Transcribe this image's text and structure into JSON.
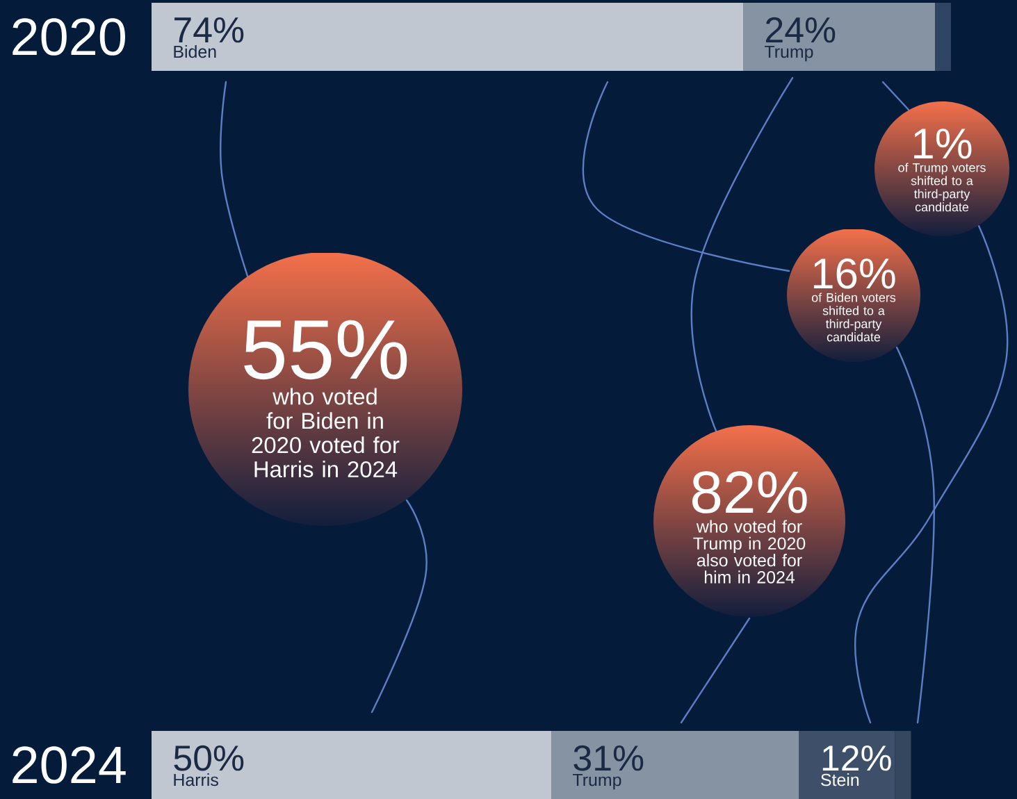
{
  "chart_data": {
    "type": "bar",
    "orientation": "horizontal",
    "stacked": true,
    "tick_labels": "y",
    "categories": [
      "2020",
      "2024"
    ],
    "series": [
      {
        "name": "Biden",
        "color": "#c0c7d0",
        "values": [
          74,
          null
        ],
        "value_labels": [
          "74%",
          null
        ]
      },
      {
        "name": "Trump",
        "color": "#8693a2",
        "values": [
          24,
          null
        ],
        "value_labels": [
          "24%",
          null
        ]
      },
      {
        "color": "#2f4563",
        "values": [
          2,
          null
        ]
      },
      {
        "name": "Harris",
        "color": "#c0c7d0",
        "values": [
          null,
          50
        ],
        "value_labels": [
          null,
          "50%"
        ]
      },
      {
        "name": "Trump",
        "color": "#8693a2",
        "values": [
          null,
          31
        ],
        "value_labels": [
          null,
          "31%"
        ]
      },
      {
        "name": "Stein",
        "color": "#3e5069",
        "values": [
          null,
          12
        ],
        "value_labels": [
          null,
          "12%"
        ]
      },
      {
        "color": "#34475f",
        "values": [
          null,
          2
        ]
      }
    ],
    "annotations": [
      "55%",
      "who voted for Biden in 2020 voted for Harris in 2024",
      "82%",
      "who voted for Trump in 2020 also voted for him in 2024",
      "16%",
      "of Biden voters shifted to a third-party candidate",
      "1%",
      "of Trump voters shifted to a third-party candidate"
    ]
  }
}
